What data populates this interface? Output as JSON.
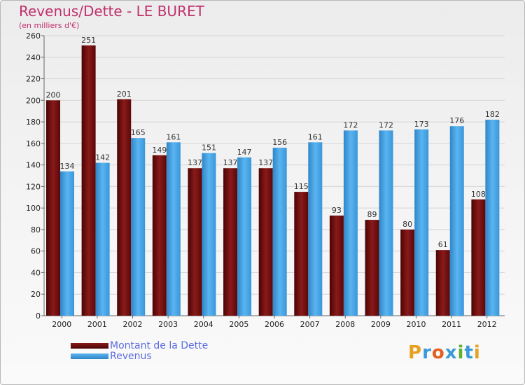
{
  "chart_data": {
    "type": "bar",
    "title": "Revenus/Dette - LE BURET",
    "subtitle": "(en milliers d'€)",
    "categories": [
      "2000",
      "2001",
      "2002",
      "2003",
      "2004",
      "2005",
      "2006",
      "2007",
      "2008",
      "2009",
      "2010",
      "2011",
      "2012"
    ],
    "series": [
      {
        "name": "Montant de la Dette",
        "color": "#6b0a0a",
        "values": [
          200,
          251,
          201,
          149,
          137,
          137,
          137,
          115,
          93,
          89,
          80,
          61,
          108
        ]
      },
      {
        "name": "Revenus",
        "color": "#4aa6e8",
        "values": [
          134,
          142,
          165,
          161,
          151,
          147,
          156,
          161,
          172,
          172,
          173,
          176,
          182
        ]
      }
    ],
    "ylim": [
      0,
      260
    ],
    "yticks": [
      0,
      20,
      40,
      60,
      80,
      100,
      120,
      140,
      160,
      180,
      200,
      220,
      240,
      260
    ],
    "grid": true,
    "legend_position": "bottom-left"
  },
  "logo": {
    "text": "Proxiti",
    "letters": [
      "P",
      "r",
      "o",
      "x",
      "i",
      "t",
      "i"
    ],
    "colors": [
      "#e8a020",
      "#3a9ad9",
      "#e06020",
      "#3a9ad9",
      "#60b030",
      "#3a9ad9",
      "#e8a020"
    ]
  }
}
